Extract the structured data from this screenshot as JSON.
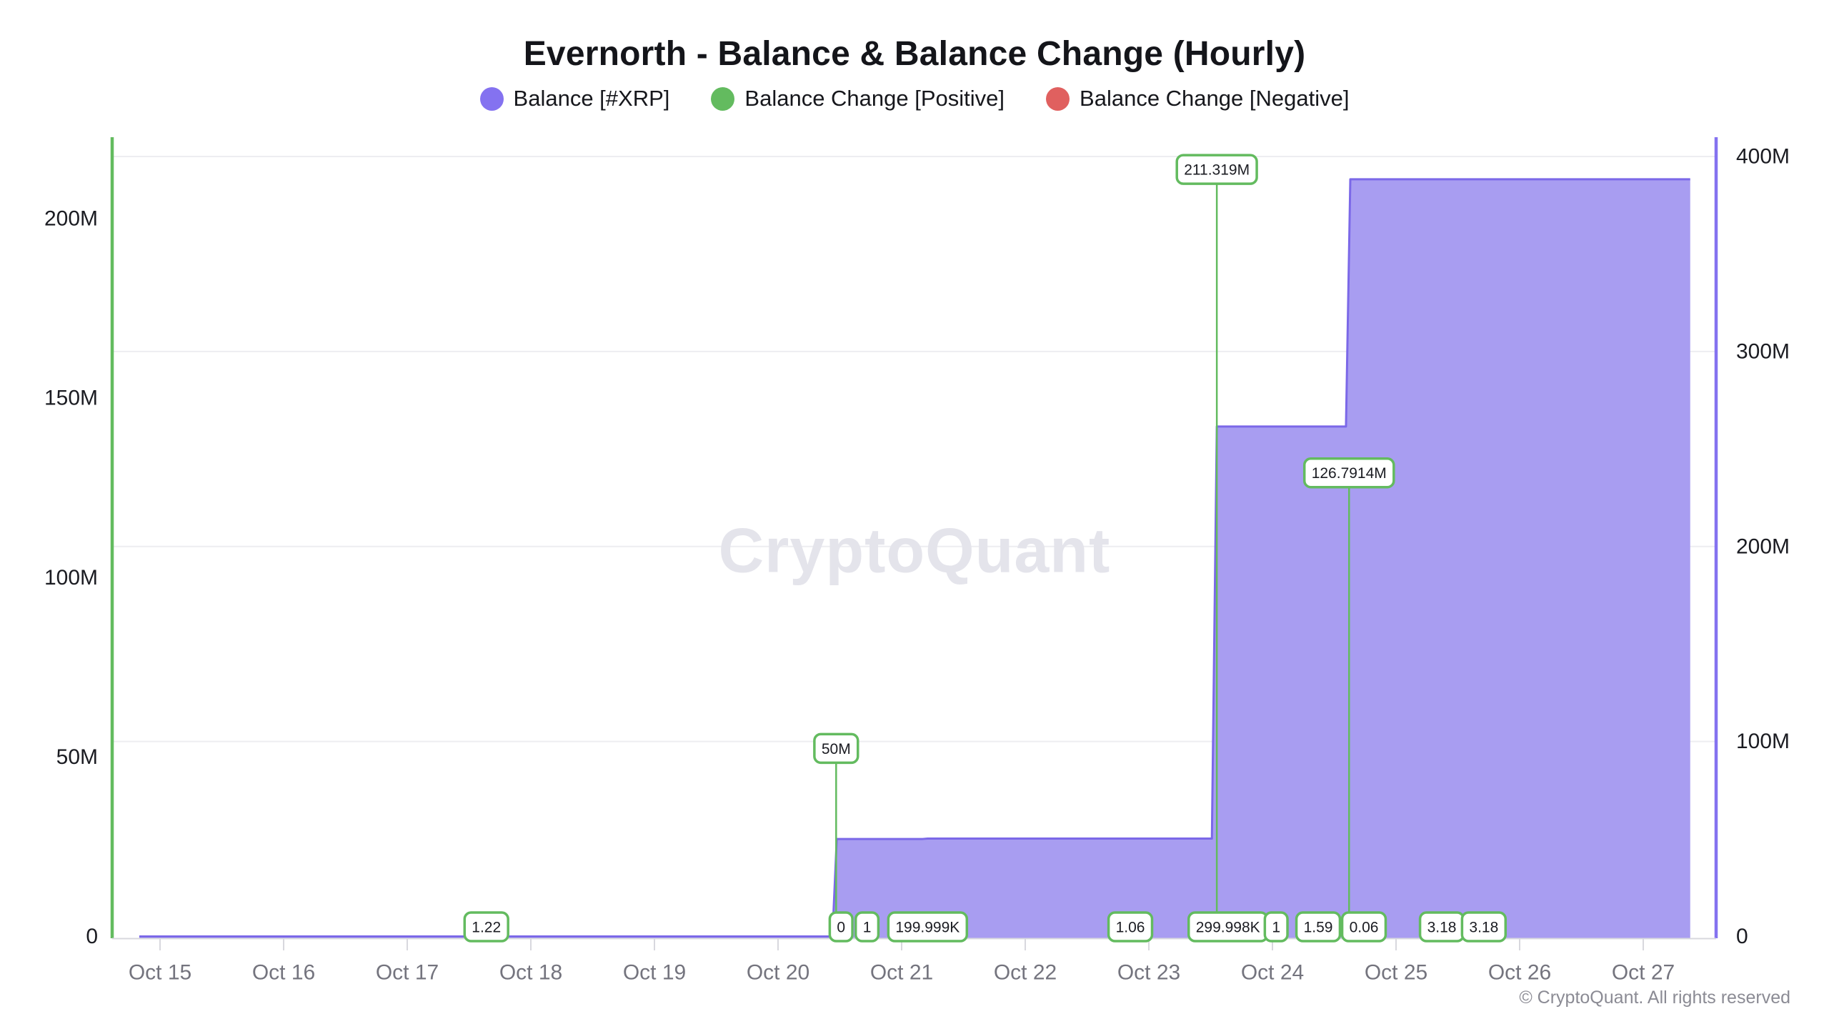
{
  "title": "Evernorth - Balance & Balance Change (Hourly)",
  "legend": {
    "items": [
      {
        "label": "Balance [#XRP]",
        "color": "#8472f0"
      },
      {
        "label": "Balance Change [Positive]",
        "color": "#63bb5f"
      },
      {
        "label": "Balance Change [Negative]",
        "color": "#e0605f"
      }
    ]
  },
  "watermark": "CryptoQuant",
  "footer": "© CryptoQuant. All rights reserved",
  "chart_data": {
    "type": "area",
    "title": "Evernorth - Balance & Balance Change (Hourly)",
    "x_labels": [
      "Oct 15",
      "Oct 16",
      "Oct 17",
      "Oct 18",
      "Oct 19",
      "Oct 20",
      "Oct 21",
      "Oct 22",
      "Oct 23",
      "Oct 24",
      "Oct 25",
      "Oct 26",
      "Oct 27"
    ],
    "grid": "horizontal-only",
    "left_axis": {
      "series": "Balance Change [Positive]",
      "ticks": [
        "0",
        "50M",
        "100M",
        "150M",
        "200M"
      ],
      "tick_values": [
        0,
        50000000,
        100000000,
        150000000,
        200000000
      ],
      "range_max": 200000000,
      "color": "#63bb5f"
    },
    "right_axis": {
      "series": "Balance [#XRP]",
      "ticks": [
        "0",
        "100M",
        "200M",
        "300M",
        "400M"
      ],
      "tick_values": [
        0,
        100000000,
        200000000,
        300000000,
        400000000
      ],
      "range_max": 400000000,
      "color": "#8472f0"
    },
    "balance_series": {
      "name": "Balance [#XRP]",
      "axis": "right",
      "line_color": "#7b68e8",
      "fill_color": "#a89df1",
      "points": [
        {
          "t": -0.168,
          "v": 0
        },
        {
          "t": 5.44,
          "v": 0
        },
        {
          "t": 5.475,
          "v": 50000000
        },
        {
          "t": 6.17,
          "v": 50000000
        },
        {
          "t": 6.21,
          "v": 50199999
        },
        {
          "t": 8.51,
          "v": 50199999
        },
        {
          "t": 8.55,
          "v": 261519000
        },
        {
          "t": 9.595,
          "v": 261519000
        },
        {
          "t": 9.63,
          "v": 388310400
        },
        {
          "t": 12.38,
          "v": 388310400
        }
      ]
    },
    "change_events": {
      "name": "Balance Change [Positive]",
      "axis": "left",
      "bar_color": "#63bb5f",
      "events": [
        {
          "t": 2.64,
          "label": "1.22",
          "v": 1.22,
          "placement": "baseline"
        },
        {
          "t": 5.47,
          "label": "50M",
          "v": 50000000,
          "placement": "top"
        },
        {
          "t": 5.51,
          "label": "0",
          "v": 0,
          "placement": "baseline"
        },
        {
          "t": 5.72,
          "label": "1",
          "v": 1,
          "placement": "baseline"
        },
        {
          "t": 6.21,
          "label": "199.999K",
          "v": 199999,
          "placement": "baseline"
        },
        {
          "t": 7.85,
          "label": "1.06",
          "v": 1.06,
          "placement": "baseline"
        },
        {
          "t": 8.55,
          "label": "211.319M",
          "v": 211319000,
          "placement": "top"
        },
        {
          "t": 8.64,
          "label": "299.998K",
          "v": 299998,
          "placement": "baseline"
        },
        {
          "t": 9.03,
          "label": "1",
          "v": 1,
          "placement": "baseline"
        },
        {
          "t": 9.37,
          "label": "1.59",
          "v": 1.59,
          "placement": "baseline"
        },
        {
          "t": 9.62,
          "label": "126.7914M",
          "v": 126791400,
          "placement": "top"
        },
        {
          "t": 9.74,
          "label": "0.06",
          "v": 0.06,
          "placement": "baseline"
        },
        {
          "t": 10.37,
          "label": "3.18",
          "v": 3.18,
          "placement": "baseline"
        },
        {
          "t": 10.71,
          "label": "3.18",
          "v": 3.18,
          "placement": "baseline"
        }
      ]
    },
    "style_colors": {
      "gridline": "#ededf1",
      "axis_baseline": "#d8d8de",
      "x_tick_label": "#74747e",
      "y_tick_label": "#1b1c22",
      "watermark": "#e4e4eb",
      "label_box_border": "#63bb5f",
      "label_box_bg": "#ffffff",
      "label_box_text": "#1b1c22"
    }
  }
}
